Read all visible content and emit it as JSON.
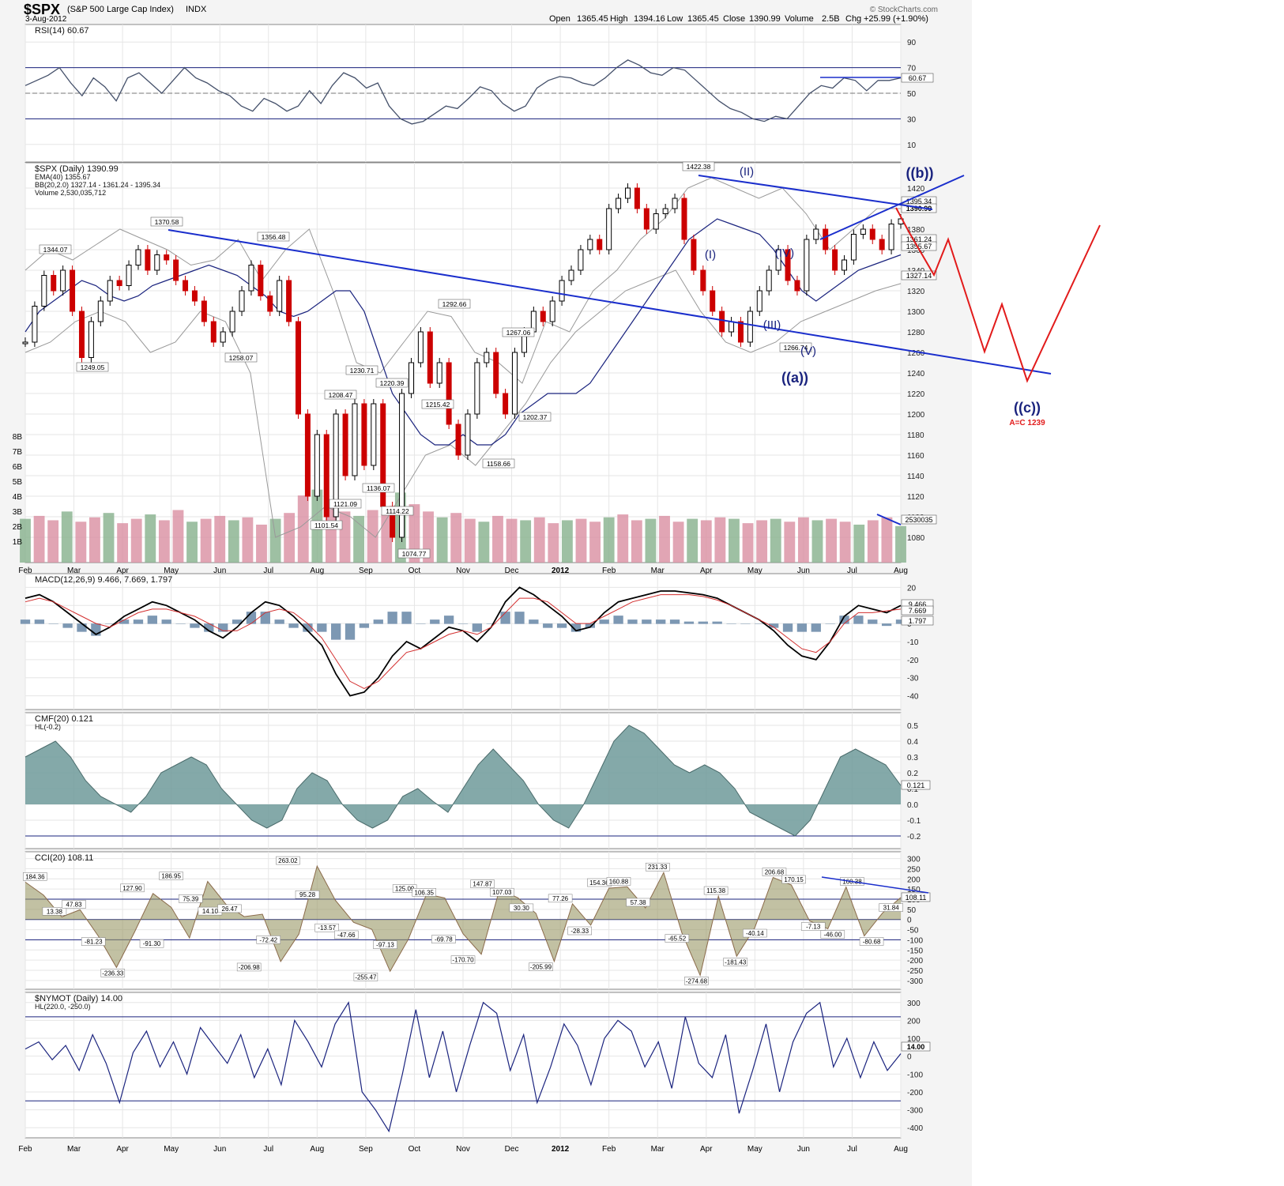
{
  "header": {
    "symbol": "$SPX",
    "name": "(S&P 500 Large Cap Index)",
    "exchange": "INDX",
    "date": "3-Aug-2012",
    "watermark": "© StockCharts.com",
    "open_label": "Open",
    "open": "1365.45",
    "high_label": "High",
    "high": "1394.16",
    "low_label": "Low",
    "low": "1365.45",
    "close_label": "Close",
    "close": "1390.99",
    "volume_label": "Volume",
    "volume": "2.5B",
    "chg_label": "Chg",
    "chg": "+25.99 (+1.90%)"
  },
  "colors": {
    "up": "#000000",
    "down": "#cc0000",
    "trend": "#1a2ecc",
    "projection": "#e21b1b",
    "cmf_fill": "#6f9a9a",
    "cci_fill": "#9a9766",
    "volume_up": "#86b08c",
    "volume_down": "#d98fa1",
    "grid": "#e6e6e6",
    "panel_bg": "#ffffff",
    "outer_bg": "#f4f4f4"
  },
  "x_axis": {
    "labels": [
      "Feb",
      "Mar",
      "Apr",
      "May",
      "Jun",
      "Jul",
      "Aug",
      "Sep",
      "Oct",
      "Nov",
      "Dec",
      "2012",
      "Feb",
      "Mar",
      "Apr",
      "May",
      "Jun",
      "Jul",
      "Aug"
    ]
  },
  "chart_data": [
    {
      "type": "line",
      "panel": "RSI",
      "legend": "RSI(14) 60.67",
      "ylim": [
        0,
        100
      ],
      "yticks": [
        "90",
        "70",
        "50",
        "30",
        "10"
      ],
      "reference_lines": [
        70,
        50,
        30
      ],
      "last_value": "60.67",
      "series": [
        {
          "name": "RSI(14)",
          "values": [
            56,
            60,
            64,
            70,
            58,
            48,
            62,
            55,
            44,
            62,
            66,
            58,
            50,
            60,
            70,
            62,
            58,
            52,
            48,
            40,
            36,
            46,
            42,
            36,
            40,
            52,
            42,
            56,
            66,
            62,
            54,
            58,
            40,
            30,
            26,
            28,
            34,
            40,
            38,
            46,
            55,
            52,
            42,
            36,
            40,
            54,
            60,
            63,
            62,
            58,
            56,
            62,
            70,
            76,
            72,
            66,
            64,
            70,
            68,
            60,
            52,
            44,
            38,
            35,
            30,
            28,
            32,
            30,
            40,
            50,
            56,
            54,
            62,
            60,
            52,
            60,
            60,
            62
          ]
        }
      ]
    },
    {
      "type": "line",
      "panel": "Price",
      "legend": [
        "$SPX (Daily) 1390.99",
        "EMA(40) 1355.67",
        "BB(20,2.0) 1327.14 - 1361.24 - 1395.34",
        "Volume 2,530,035,712"
      ],
      "ylim": [
        1060,
        1440
      ],
      "yticks": [
        "1420",
        "1400",
        "1380",
        "1360",
        "1340",
        "1320",
        "1300",
        "1280",
        "1260",
        "1240",
        "1220",
        "1200",
        "1180",
        "1160",
        "1140",
        "1120",
        "1100",
        "1080"
      ],
      "volume_ticks": [
        "8B",
        "7B",
        "6B",
        "5B",
        "4B",
        "3B",
        "2B",
        "1B"
      ],
      "price_labels": [
        {
          "text": "1344.07",
          "x": "Feb 2011",
          "y": 1344.07
        },
        {
          "text": "1249.05",
          "x": "Mar 2011",
          "y": 1249.05
        },
        {
          "text": "1370.58",
          "x": "May 2011",
          "y": 1370.58
        },
        {
          "text": "1258.07",
          "x": "Jun 2011",
          "y": 1258.07
        },
        {
          "text": "1356.48",
          "x": "Jul 2011",
          "y": 1356.48
        },
        {
          "text": "1101.54",
          "x": "Aug 2011",
          "y": 1101.54
        },
        {
          "text": "1208.47",
          "x": "Aug 2011",
          "y": 1208.47
        },
        {
          "text": "1121.09",
          "x": "Aug 2011",
          "y": 1121.09
        },
        {
          "text": "1230.71",
          "x": "Sep 2011",
          "y": 1230.71
        },
        {
          "text": "1136.07",
          "x": "Sep 2011",
          "y": 1136.07
        },
        {
          "text": "1220.39",
          "x": "Sep 2011",
          "y": 1220.39
        },
        {
          "text": "1114.22",
          "x": "Sep 2011",
          "y": 1114.22
        },
        {
          "text": "1074.77",
          "x": "Oct 2011",
          "y": 1074.77
        },
        {
          "text": "1215.42",
          "x": "Oct 2011",
          "y": 1215.42
        },
        {
          "text": "1292.66",
          "x": "Oct 2011",
          "y": 1292.66
        },
        {
          "text": "1158.66",
          "x": "Nov 2011",
          "y": 1158.66
        },
        {
          "text": "1267.06",
          "x": "Dec 2011",
          "y": 1267.06
        },
        {
          "text": "1202.37",
          "x": "Dec 2011",
          "y": 1202.37
        },
        {
          "text": "1422.38",
          "x": "Apr 2012",
          "y": 1422.38
        },
        {
          "text": "1266.74",
          "x": "Jun 2012",
          "y": 1266.74
        }
      ],
      "wave_labels": [
        "(I)",
        "(II)",
        "(III)",
        "(IV)",
        "(V)",
        "((a))",
        "((b))",
        "((c))"
      ],
      "projection_note": "A=C 1239",
      "right_labels": [
        "1395.34",
        "1390.99",
        "1361.24",
        "1355.67",
        "1327.14",
        "2530035"
      ],
      "series": [
        {
          "name": "$SPX",
          "values": [
            1270,
            1305,
            1335,
            1320,
            1340,
            1300,
            1255,
            1290,
            1310,
            1330,
            1325,
            1345,
            1360,
            1340,
            1355,
            1350,
            1330,
            1320,
            1310,
            1290,
            1270,
            1280,
            1300,
            1320,
            1345,
            1315,
            1300,
            1330,
            1290,
            1200,
            1120,
            1180,
            1100,
            1200,
            1140,
            1210,
            1150,
            1210,
            1110,
            1080,
            1220,
            1250,
            1280,
            1230,
            1250,
            1190,
            1160,
            1200,
            1250,
            1260,
            1220,
            1200,
            1260,
            1280,
            1300,
            1290,
            1310,
            1330,
            1340,
            1360,
            1370,
            1360,
            1400,
            1410,
            1420,
            1400,
            1380,
            1395,
            1400,
            1410,
            1370,
            1340,
            1320,
            1300,
            1280,
            1290,
            1270,
            1300,
            1320,
            1340,
            1360,
            1330,
            1320,
            1370,
            1380,
            1360,
            1340,
            1350,
            1375,
            1380,
            1370,
            1360,
            1385,
            1390
          ]
        },
        {
          "name": "EMA(40)",
          "values": [
            1280,
            1300,
            1310,
            1320,
            1330,
            1325,
            1315,
            1310,
            1315,
            1325,
            1330,
            1335,
            1340,
            1345,
            1340,
            1335,
            1325,
            1315,
            1300,
            1295,
            1300,
            1310,
            1320,
            1320,
            1300,
            1260,
            1220,
            1200,
            1180,
            1170,
            1170,
            1180,
            1170,
            1170,
            1180,
            1200,
            1210,
            1220,
            1220,
            1220,
            1230,
            1250,
            1270,
            1290,
            1310,
            1330,
            1350,
            1370,
            1380,
            1390,
            1385,
            1380,
            1375,
            1360,
            1340,
            1320,
            1310,
            1320,
            1330,
            1340,
            1345,
            1350,
            1355
          ]
        },
        {
          "name": "BB upper",
          "values": [
            1340,
            1360,
            1350,
            1365,
            1380,
            1370,
            1360,
            1345,
            1350,
            1370,
            1330,
            1360,
            1380,
            1320,
            1250,
            1240,
            1270,
            1300,
            1295,
            1260,
            1250,
            1230,
            1290,
            1280,
            1320,
            1340,
            1370,
            1390,
            1420,
            1430,
            1420,
            1410,
            1420,
            1395,
            1360,
            1380,
            1400,
            1400
          ]
        },
        {
          "name": "BB lower",
          "values": [
            1260,
            1270,
            1290,
            1300,
            1290,
            1260,
            1270,
            1300,
            1290,
            1240,
            1080,
            1090,
            1110,
            1100,
            1080,
            1120,
            1160,
            1170,
            1150,
            1180,
            1210,
            1250,
            1280,
            1300,
            1320,
            1330,
            1340,
            1300,
            1270,
            1260,
            1270,
            1290,
            1300,
            1310,
            1320,
            1327
          ]
        },
        {
          "name": "Volume",
          "values": [
            3.0,
            3.2,
            2.9,
            3.5,
            2.8,
            3.1,
            3.4,
            2.7,
            3.0,
            3.3,
            2.9,
            3.6,
            2.8,
            3.0,
            3.2,
            2.9,
            3.1,
            2.6,
            3.0,
            3.4,
            4.6,
            5.0,
            3.8,
            3.5,
            3.2,
            3.6,
            3.3,
            4.8,
            4.0,
            3.5,
            3.1,
            3.4,
            3.0,
            2.8,
            3.2,
            3.0,
            2.9,
            3.1,
            2.7,
            2.9,
            3.0,
            2.8,
            3.1,
            3.3,
            2.9,
            3.0,
            3.2,
            2.8,
            3.0,
            2.9,
            3.1,
            3.0,
            2.7,
            2.9,
            3.0,
            2.8,
            3.1,
            2.9,
            3.0,
            2.8,
            2.6,
            2.9,
            3.1,
            2.5
          ]
        }
      ]
    },
    {
      "type": "line",
      "panel": "MACD",
      "legend": "MACD(12,26,9) 9.466, 7.669, 1.797",
      "ylim": [
        -45,
        25
      ],
      "yticks": [
        "20",
        "10",
        "0",
        "-10",
        "-20",
        "-30",
        "-40"
      ],
      "right_labels": [
        "9.466",
        "7.669",
        "1.797"
      ],
      "series": [
        {
          "name": "MACD",
          "values": [
            14,
            16,
            12,
            6,
            0,
            -6,
            -2,
            4,
            8,
            12,
            10,
            6,
            2,
            -4,
            -8,
            -2,
            6,
            12,
            10,
            4,
            -4,
            -12,
            -28,
            -40,
            -38,
            -30,
            -18,
            -10,
            -14,
            -8,
            -2,
            -4,
            -10,
            -2,
            12,
            20,
            16,
            10,
            4,
            -4,
            -2,
            6,
            12,
            14,
            16,
            18,
            18,
            17,
            16,
            14,
            10,
            6,
            2,
            -4,
            -12,
            -18,
            -20,
            -10,
            4,
            10,
            8,
            6,
            10
          ]
        },
        {
          "name": "Signal",
          "values": [
            12,
            14,
            12,
            8,
            4,
            0,
            -2,
            2,
            6,
            8,
            8,
            6,
            4,
            0,
            -4,
            -4,
            0,
            6,
            8,
            6,
            0,
            -8,
            -20,
            -32,
            -36,
            -32,
            -24,
            -16,
            -14,
            -10,
            -6,
            -4,
            -6,
            -2,
            6,
            14,
            14,
            12,
            6,
            0,
            0,
            4,
            8,
            12,
            14,
            16,
            16,
            16,
            15,
            13,
            10,
            6,
            2,
            -2,
            -8,
            -14,
            -16,
            -10,
            0,
            6,
            6,
            7,
            8
          ]
        }
      ]
    },
    {
      "type": "area",
      "panel": "CMF",
      "legend": [
        "CMF(20) 0.121",
        "HL(-0.2)"
      ],
      "ylim": [
        -0.25,
        0.55
      ],
      "yticks": [
        "0.5",
        "0.4",
        "0.3",
        "0.2",
        "0.1",
        "0.0",
        "-0.1",
        "-0.2"
      ],
      "reference_lines": [
        -0.2
      ],
      "last_value": "0.121",
      "series": [
        {
          "name": "CMF(20)",
          "values": [
            0.3,
            0.35,
            0.4,
            0.3,
            0.15,
            0.05,
            0.0,
            -0.05,
            0.05,
            0.2,
            0.25,
            0.3,
            0.25,
            0.1,
            0.0,
            -0.1,
            -0.15,
            -0.1,
            0.1,
            0.2,
            0.15,
            0.0,
            -0.1,
            -0.15,
            -0.1,
            0.05,
            0.1,
            0.02,
            -0.05,
            0.1,
            0.25,
            0.35,
            0.25,
            0.15,
            0.0,
            -0.1,
            -0.15,
            0.0,
            0.2,
            0.4,
            0.5,
            0.45,
            0.35,
            0.25,
            0.2,
            0.25,
            0.2,
            0.1,
            -0.05,
            -0.1,
            -0.15,
            -0.2,
            -0.1,
            0.1,
            0.3,
            0.35,
            0.3,
            0.25,
            0.12
          ]
        }
      ]
    },
    {
      "type": "area",
      "panel": "CCI",
      "legend": "CCI(20) 108.11",
      "ylim": [
        -320,
        310
      ],
      "yticks": [
        "300",
        "250",
        "200",
        "150",
        "100",
        "50",
        "0",
        "-50",
        "-100",
        "-150",
        "-200",
        "-250",
        "-300"
      ],
      "reference_lines": [
        100,
        0,
        -100
      ],
      "last_value": "108.11",
      "point_labels": [
        "184.36",
        "13.38",
        "47.83",
        "-81.23",
        "-236.33",
        "127.90",
        "-91.30",
        "186.95",
        "75.39",
        "14.10",
        "26.47",
        "-206.98",
        "-72.42",
        "263.02",
        "95.28",
        "-13.57",
        "-47.66",
        "-255.47",
        "-97.13",
        "125.09",
        "106.35",
        "-69.78",
        "-170.70",
        "147.87",
        "107.03",
        "30.30",
        "-205.99",
        "77.26",
        "-28.33",
        "154.36",
        "160.88",
        "57.38",
        "231.33",
        "-65.52",
        "-274.68",
        "115.38",
        "-181.43",
        "-40.14",
        "206.68",
        "170.15",
        "-7.13",
        "-46.00",
        "160.38",
        "-80.68",
        "31.84"
      ],
      "series": [
        {
          "name": "CCI(20)",
          "values": [
            184,
            120,
            13,
            48,
            -81,
            -236,
            -60,
            128,
            60,
            -91,
            187,
            75,
            14,
            26,
            -207,
            -72,
            263,
            95,
            -14,
            -48,
            -255,
            -97,
            125,
            106,
            -70,
            -171,
            148,
            107,
            30,
            -206,
            77,
            -28,
            154,
            161,
            57,
            231,
            -66,
            -275,
            115,
            -181,
            -40,
            207,
            170,
            -7,
            -46,
            160,
            -81,
            32,
            108
          ]
        }
      ]
    },
    {
      "type": "line",
      "panel": "NYMOT",
      "legend": [
        "$NYMOT (Daily) 14.00",
        "HL(220.0, -250.0)"
      ],
      "ylim": [
        -430,
        330
      ],
      "yticks": [
        "300",
        "200",
        "100",
        "0",
        "-100",
        "-200",
        "-300",
        "-400"
      ],
      "reference_lines": [
        220,
        -250
      ],
      "last_value": "14.00",
      "series": [
        {
          "name": "$NYMOT",
          "values": [
            40,
            80,
            -20,
            60,
            -80,
            120,
            -40,
            -260,
            20,
            140,
            -60,
            80,
            -100,
            160,
            60,
            -40,
            120,
            -120,
            40,
            -160,
            200,
            80,
            -60,
            180,
            300,
            -200,
            -300,
            -420,
            -100,
            260,
            -120,
            140,
            -200,
            60,
            300,
            240,
            -80,
            120,
            -260,
            -60,
            180,
            60,
            -160,
            100,
            200,
            140,
            -60,
            80,
            -180,
            220,
            -40,
            -120,
            120,
            -320,
            -80,
            180,
            -200,
            80,
            240,
            300,
            -60,
            100,
            -120,
            80,
            -80,
            14
          ]
        }
      ]
    }
  ]
}
